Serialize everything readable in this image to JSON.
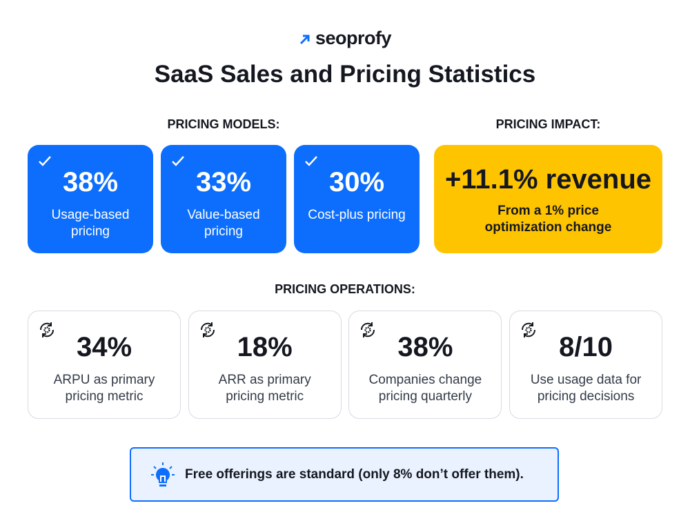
{
  "brand": "seoprofy",
  "title": "SaaS Sales and Pricing Statistics",
  "pricing_models": {
    "heading": "PRICING MODELS:",
    "cards": [
      {
        "value": "38%",
        "label": "Usage-based pricing"
      },
      {
        "value": "33%",
        "label": "Value-based pricing"
      },
      {
        "value": "30%",
        "label": "Cost-plus pricing"
      }
    ]
  },
  "pricing_impact": {
    "heading": "PRICING IMPACT:",
    "value": "+11.1% revenue",
    "label": "From a 1% price optimization change"
  },
  "pricing_operations": {
    "heading": "PRICING OPERATIONS:",
    "cards": [
      {
        "value": "34%",
        "label": "ARPU as primary pricing metric"
      },
      {
        "value": "18%",
        "label": "ARR as primary pricing metric"
      },
      {
        "value": "38%",
        "label": "Companies change pricing quarterly"
      },
      {
        "value": "8/10",
        "label": "Use usage data for pricing decisions"
      }
    ]
  },
  "note": "Free offerings are standard (only 8% don’t offer them)."
}
